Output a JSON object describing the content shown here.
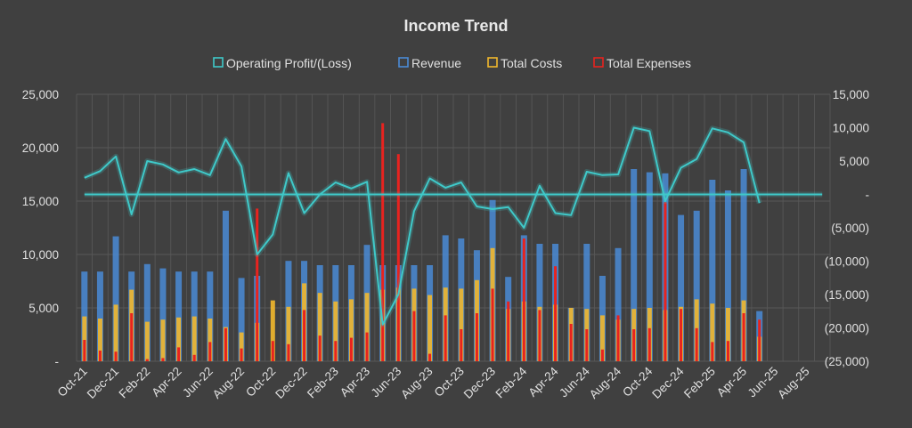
{
  "chart_data": {
    "type": "bar",
    "title": "Income Trend",
    "legend_position": "top",
    "grid": true,
    "colors": {
      "background": "#404040",
      "profit": "#3fc9c9",
      "revenue": "#4a8bd6",
      "costs": "#f2b82c",
      "expenses": "#e8231f",
      "grid": "#595959",
      "text": "#e0e0e0"
    },
    "legend": {
      "profit": "Operating Profit/(Loss)",
      "revenue": "Revenue",
      "costs": "Total Costs",
      "expenses": "Total Expenses"
    },
    "x_tick_labels": [
      "Oct-21",
      "Dec-21",
      "Feb-22",
      "Apr-22",
      "Jun-22",
      "Aug-22",
      "Oct-22",
      "Dec-22",
      "Feb-23",
      "Apr-23",
      "Jun-23",
      "Aug-23",
      "Oct-23",
      "Dec-23",
      "Feb-24",
      "Apr-24",
      "Jun-24",
      "Aug-24",
      "Oct-24",
      "Dec-24",
      "Feb-25",
      "Apr-25",
      "Jun-25",
      "Aug-25"
    ],
    "x_tick_index": [
      0,
      2,
      4,
      6,
      8,
      10,
      12,
      14,
      16,
      18,
      20,
      22,
      24,
      26,
      28,
      30,
      32,
      34,
      36,
      38,
      40,
      42,
      44,
      46
    ],
    "y_left": {
      "min": 0,
      "max": 25000,
      "ticks": [
        0,
        5000,
        10000,
        15000,
        20000,
        25000
      ],
      "tick_labels": [
        "-",
        "5,000",
        "10,000",
        "15,000",
        "20,000",
        "25,000"
      ]
    },
    "y_right": {
      "min": -25000,
      "max": 15000,
      "ticks": [
        -25000,
        -20000,
        -15000,
        -10000,
        -5000,
        0,
        5000,
        10000,
        15000
      ],
      "tick_labels": [
        "(25,000)",
        "(20,000)",
        "(15,000)",
        "(10,000)",
        "(5,000)",
        "-",
        "5,000",
        "10,000",
        "15,000"
      ]
    },
    "months": 48,
    "series": [
      {
        "name": "Revenue",
        "key": "revenue",
        "axis": "left",
        "values": [
          8400,
          8400,
          11700,
          8400,
          9100,
          8700,
          8400,
          8400,
          8400,
          14100,
          7800,
          8000,
          0,
          9400,
          9400,
          9000,
          9000,
          9000,
          10900,
          9000,
          9000,
          9000,
          9000,
          11800,
          11500,
          10400,
          15100,
          7900,
          11800,
          11000,
          11000,
          5000,
          11000,
          8000,
          10600,
          18000,
          17700,
          17600,
          13700,
          14100,
          17000,
          16000,
          18000,
          4700,
          0,
          0,
          0,
          0
        ]
      },
      {
        "name": "Total Costs",
        "key": "costs",
        "axis": "left",
        "values": [
          4200,
          4000,
          5300,
          6700,
          3700,
          3900,
          4100,
          4200,
          4000,
          3200,
          2700,
          3600,
          5700,
          5100,
          7300,
          6400,
          5600,
          5800,
          6400,
          6700,
          6900,
          6800,
          6200,
          6900,
          6800,
          7600,
          10600,
          4900,
          5600,
          5100,
          5300,
          5000,
          4900,
          4300,
          3900,
          4900,
          5000,
          4800,
          5100,
          5800,
          5400,
          5000,
          5700,
          2300,
          0,
          0,
          0,
          0
        ]
      },
      {
        "name": "Total Expenses",
        "key": "expenses",
        "axis": "left",
        "values": [
          2000,
          1000,
          900,
          4500,
          200,
          300,
          1300,
          600,
          1800,
          3100,
          1200,
          14300,
          1900,
          1600,
          4800,
          2400,
          1900,
          2200,
          2700,
          22300,
          19400,
          4700,
          700,
          4300,
          3000,
          4500,
          6800,
          5600,
          11500,
          4800,
          8900,
          3500,
          3000,
          1100,
          4300,
          3000,
          3100,
          14900,
          4900,
          3100,
          1800,
          1900,
          4500,
          3900,
          0,
          0,
          0,
          0
        ]
      },
      {
        "name": "Operating Profit/(Loss)",
        "key": "profit",
        "axis": "right",
        "values": [
          2500,
          3500,
          5700,
          -3000,
          5000,
          4500,
          3300,
          3800,
          2900,
          8300,
          4200,
          -9000,
          -6000,
          3200,
          -2800,
          0,
          1800,
          900,
          1900,
          -19500,
          -15000,
          -2500,
          2400,
          1000,
          1800,
          -1800,
          -2200,
          -1900,
          -5000,
          1300,
          -2800,
          -3100,
          3400,
          2900,
          3000,
          10000,
          9500,
          -1000,
          4000,
          5300,
          9900,
          9300,
          7800,
          -1300,
          0,
          0,
          0,
          0
        ],
        "solid_points": 44
      }
    ]
  }
}
